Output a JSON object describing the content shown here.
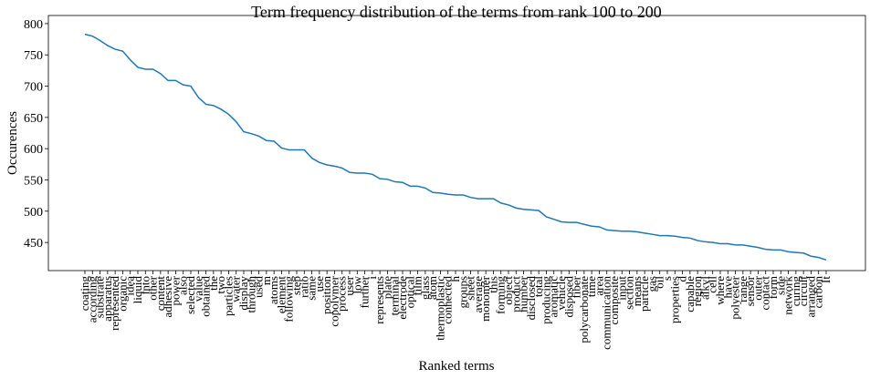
{
  "chart_data": {
    "type": "line",
    "title": "Term frequency distribution of the terms from rank 100 to 200",
    "x_label": "Ranked terms",
    "y_label": "Occurences",
    "categories": [
      "coating",
      "according",
      "substrate",
      "apparatus",
      "represented",
      "organic",
      "idea",
      "liquid",
      "into",
      "other",
      "content",
      "adhesive",
      "power",
      "also",
      "selected",
      "value",
      "obtained",
      "the",
      "two",
      "particles",
      "water",
      "display",
      "through",
      "used",
      "m",
      "atoms",
      "element",
      "following",
      "step",
      "ratio",
      "same",
      "use",
      "position",
      "copolymer",
      "process",
      "user",
      "low",
      "further",
      "i",
      "represents",
      "plate",
      "terminal",
      "electrode",
      "optical",
      "film",
      "glass",
      "atom",
      "thermoplastic",
      "connected",
      "h",
      "groups",
      "sheet",
      "average",
      "monomer",
      "this",
      "forming",
      "object",
      "product",
      "number",
      "disclosed",
      "total",
      "producing",
      "aromatic",
      "vehicle",
      "disposed",
      "fiber",
      "polycarbonate",
      "time",
      "area",
      "communication",
      "composite",
      "input",
      "section",
      "means",
      "particle",
      "gas",
      "oil",
      "s",
      "properties",
      "d",
      "capable",
      "region",
      "alkyl",
      "cell",
      "where",
      "have",
      "polyester",
      "range",
      "sensor",
      "outer",
      "contact",
      "form",
      "side",
      "network",
      "curing",
      "circuit",
      "arranged",
      "carbon",
      "It"
    ],
    "series": [
      {
        "name": "Occurences",
        "color": "#1f77b4",
        "values": [
          783,
          780,
          773,
          765,
          759,
          756,
          742,
          730,
          727,
          727,
          720,
          709,
          709,
          702,
          700,
          682,
          671,
          669,
          663,
          655,
          643,
          627,
          624,
          620,
          613,
          612,
          601,
          598,
          598,
          598,
          585,
          578,
          574,
          572,
          569,
          562,
          561,
          561,
          559,
          552,
          551,
          547,
          546,
          540,
          540,
          537,
          530,
          529,
          527,
          526,
          526,
          522,
          520,
          520,
          520,
          513,
          510,
          505,
          503,
          502,
          501,
          491,
          487,
          483,
          482,
          482,
          479,
          476,
          475,
          470,
          469,
          468,
          468,
          467,
          465,
          463,
          461,
          461,
          460,
          458,
          457,
          453,
          451,
          450,
          448,
          448,
          446,
          446,
          444,
          442,
          439,
          438,
          438,
          435,
          434,
          433,
          428,
          426,
          422
        ]
      }
    ],
    "ylim": [
      405,
      813
    ],
    "yticks": [
      450,
      500,
      550,
      600,
      650,
      700,
      750,
      800
    ],
    "grid": false
  }
}
